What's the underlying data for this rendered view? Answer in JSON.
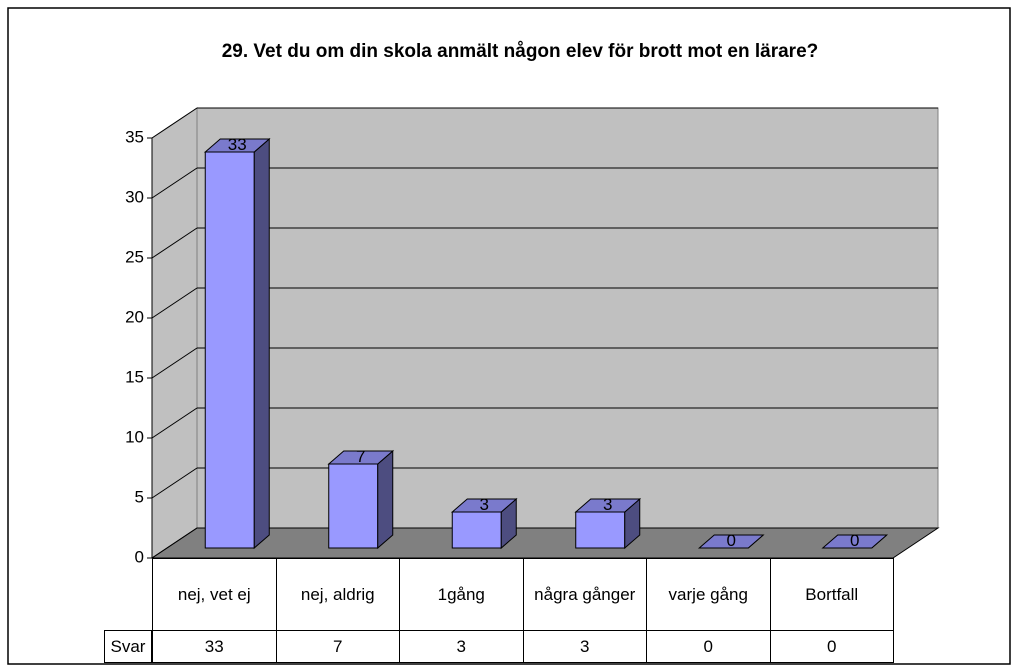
{
  "chart_data": {
    "type": "bar3d",
    "title": "29. Vet du om din skola anmält någon elev för brott mot en lärare?",
    "categories": [
      "nej, vet ej",
      "nej, aldrig",
      "1gång",
      "några gånger",
      "varje gång",
      "Bortfall"
    ],
    "series": [
      {
        "name": "Svar",
        "color": "#9999ff",
        "values": [
          33,
          7,
          3,
          3,
          0,
          0
        ]
      }
    ],
    "ylim": [
      0,
      35
    ],
    "yticks": [
      0,
      5,
      10,
      15,
      20,
      25,
      30,
      35
    ],
    "grid": true,
    "data_table": true
  }
}
